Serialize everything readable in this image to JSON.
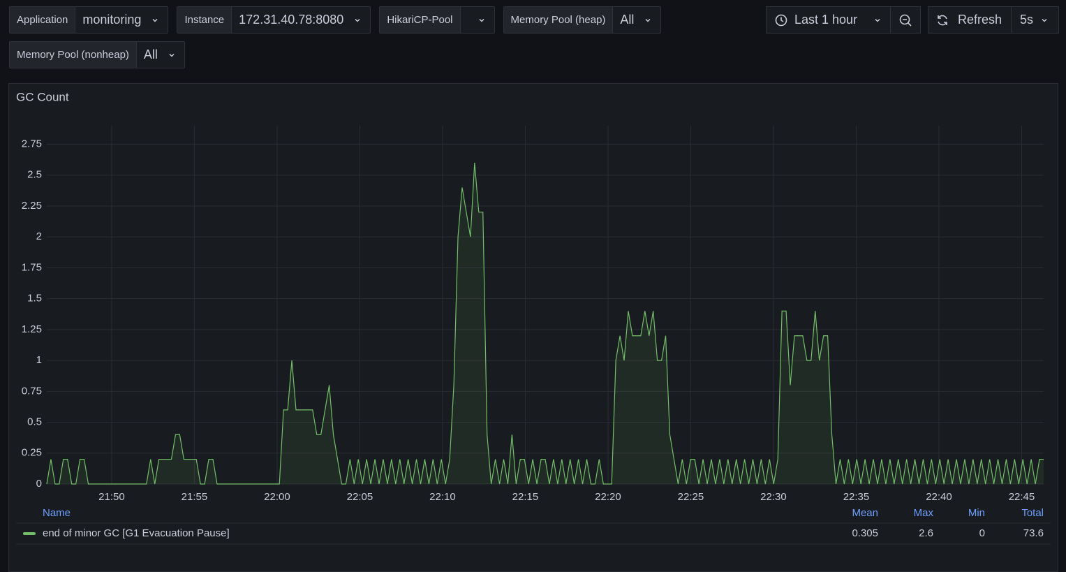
{
  "toolbar": {
    "variables": [
      {
        "label": "Application",
        "value": "monitoring"
      },
      {
        "label": "Instance",
        "value": "172.31.40.78:8080"
      },
      {
        "label": "HikariCP-Pool"
      },
      {
        "label": "Memory Pool (heap)",
        "value": "All"
      },
      {
        "label": "Memory Pool (nonheap)",
        "value": "All"
      }
    ],
    "time_range": "Last 1 hour",
    "refresh": "Refresh",
    "refresh_interval": "5s"
  },
  "chart_data": {
    "type": "line",
    "title": "GC Count",
    "xlim": [
      1306.08,
      1366.33
    ],
    "xticks": [
      {
        "value": 1310,
        "label": "21:50"
      },
      {
        "value": 1315,
        "label": "21:55"
      },
      {
        "value": 1320,
        "label": "22:00"
      },
      {
        "value": 1325,
        "label": "22:05"
      },
      {
        "value": 1330,
        "label": "22:10"
      },
      {
        "value": 1335,
        "label": "22:15"
      },
      {
        "value": 1340,
        "label": "22:20"
      },
      {
        "value": 1345,
        "label": "22:25"
      },
      {
        "value": 1350,
        "label": "22:30"
      },
      {
        "value": 1355,
        "label": "22:35"
      },
      {
        "value": 1360,
        "label": "22:40"
      },
      {
        "value": 1365,
        "label": "22:45"
      }
    ],
    "ylim": [
      0,
      2.9
    ],
    "yticks": [
      0,
      0.25,
      0.5,
      0.75,
      1,
      1.25,
      1.5,
      1.75,
      2,
      2.25,
      2.5,
      2.75
    ],
    "grid": true,
    "legend_columns": [
      "Name",
      "Mean",
      "Max",
      "Min",
      "Total"
    ],
    "series": [
      {
        "name": "end of minor GC [G1 Evacuation Pause]",
        "color": "#73bf69",
        "stats": [
          0.305,
          2.6,
          0,
          73.6
        ],
        "values": [
          0,
          0.2,
          0,
          0,
          0.2,
          0.2,
          0,
          0,
          0.2,
          0.2,
          0,
          0,
          0,
          0,
          0,
          0,
          0,
          0,
          0,
          0,
          0,
          0,
          0,
          0,
          0,
          0.2,
          0,
          0.2,
          0.2,
          0.2,
          0.2,
          0.4,
          0.4,
          0.2,
          0.2,
          0.2,
          0.2,
          0,
          0,
          0.2,
          0.2,
          0,
          0,
          0,
          0,
          0,
          0,
          0,
          0,
          0,
          0,
          0,
          0,
          0,
          0,
          0,
          0,
          0.6,
          0.6,
          1,
          0.6,
          0.6,
          0.6,
          0.6,
          0.6,
          0.4,
          0.4,
          0.6,
          0.8,
          0.4,
          0.2,
          0,
          0,
          0.2,
          0,
          0.2,
          0,
          0.2,
          0,
          0.2,
          0,
          0.2,
          0,
          0.2,
          0,
          0.2,
          0,
          0.2,
          0,
          0.2,
          0,
          0.2,
          0,
          0.2,
          0,
          0.2,
          0,
          0.2,
          0.8,
          2,
          2.4,
          2.2,
          2,
          2.6,
          2.2,
          2.2,
          0.4,
          0,
          0.2,
          0,
          0.2,
          0,
          0.4,
          0,
          0.2,
          0.2,
          0,
          0.2,
          0,
          0.2,
          0.2,
          0,
          0.2,
          0,
          0.2,
          0,
          0.2,
          0,
          0.2,
          0,
          0.2,
          0,
          0,
          0.2,
          0,
          0,
          0,
          1,
          1.2,
          1,
          1.4,
          1.2,
          1.2,
          1.2,
          1.4,
          1.2,
          1.4,
          1,
          1,
          1.2,
          0.4,
          0.2,
          0,
          0.2,
          0,
          0.2,
          0.2,
          0,
          0.2,
          0,
          0.2,
          0,
          0.2,
          0,
          0.2,
          0,
          0.2,
          0,
          0.2,
          0,
          0.2,
          0,
          0.2,
          0,
          0.2,
          0,
          0.2,
          1.4,
          1.4,
          0.8,
          1.2,
          1.2,
          1.2,
          1,
          1,
          1.4,
          1,
          1.2,
          1.2,
          0.4,
          0,
          0.2,
          0,
          0.2,
          0,
          0.2,
          0,
          0.2,
          0,
          0.2,
          0,
          0.2,
          0,
          0.2,
          0,
          0.2,
          0,
          0.2,
          0,
          0.2,
          0,
          0.2,
          0,
          0.2,
          0,
          0.2,
          0,
          0.2,
          0,
          0.2,
          0,
          0.2,
          0,
          0.2,
          0,
          0.2,
          0,
          0.2,
          0,
          0.2,
          0,
          0.2,
          0,
          0.2,
          0,
          0.2,
          0,
          0.2,
          0,
          0.2,
          0.2
        ]
      }
    ]
  }
}
